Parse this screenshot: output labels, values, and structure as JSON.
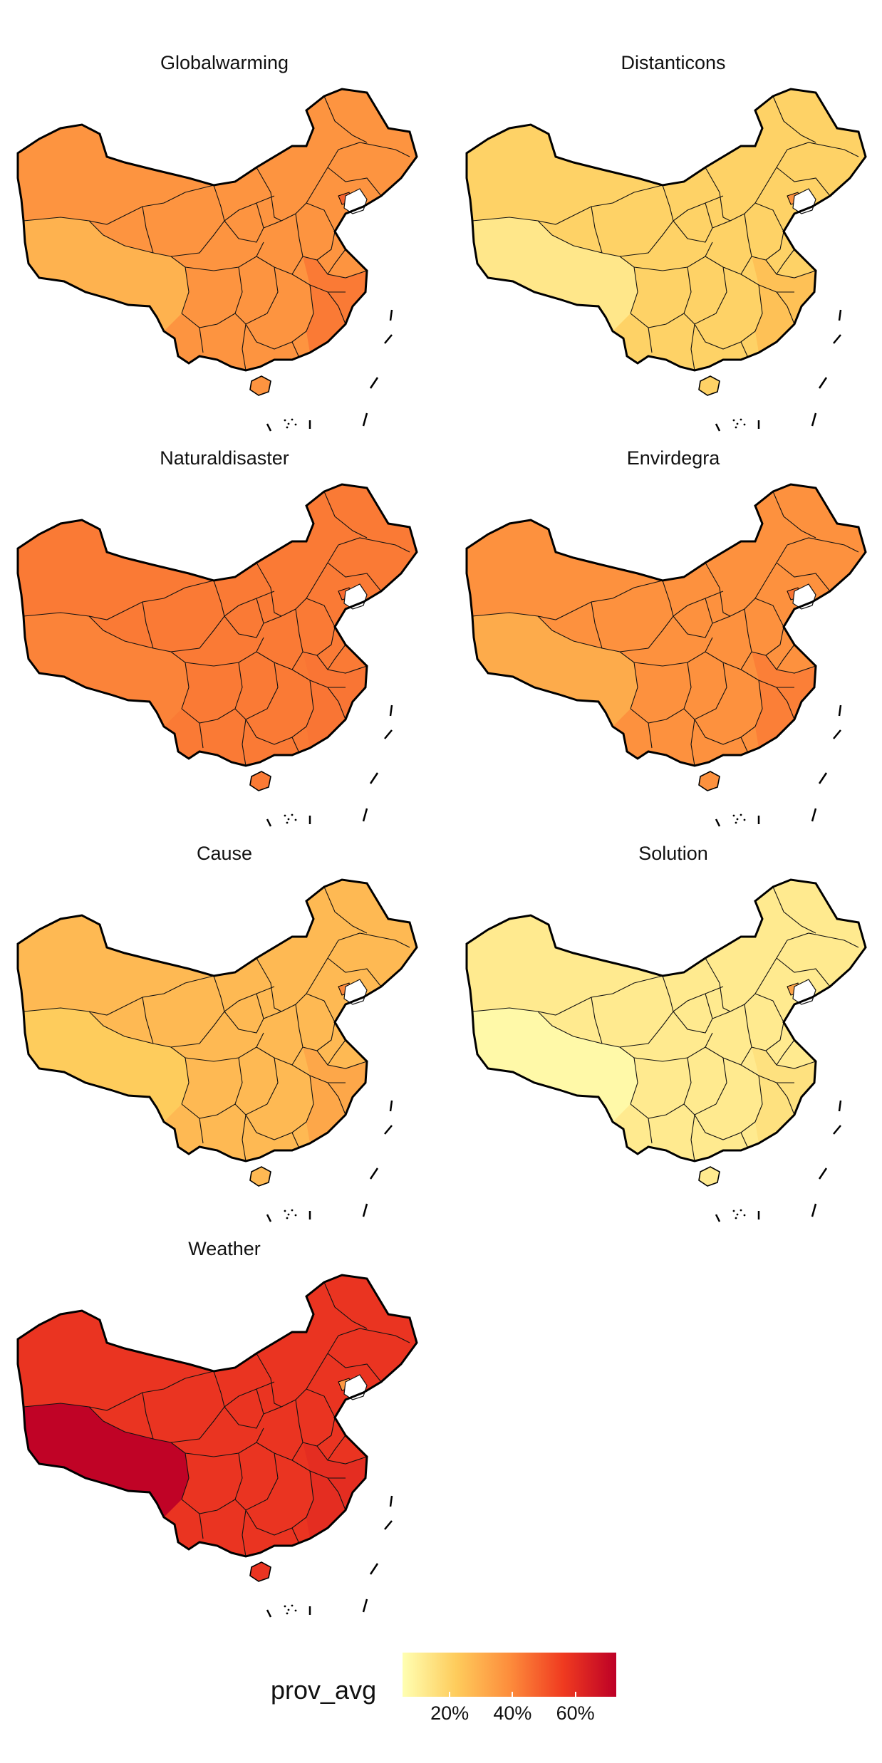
{
  "panels": [
    {
      "title": "Globalwarming",
      "level": 0.37,
      "west": 0.29,
      "hot": 0.48,
      "east": 0.43
    },
    {
      "title": "Distanticons",
      "level": 0.2,
      "west": 0.13,
      "hot": 0.38,
      "east": 0.25
    },
    {
      "title": "Naturaldisaster",
      "level": 0.43,
      "west": 0.41,
      "hot": 0.46,
      "east": 0.44
    },
    {
      "title": "Envirdegra",
      "level": 0.38,
      "west": 0.31,
      "hot": 0.44,
      "east": 0.42
    },
    {
      "title": "Cause",
      "level": 0.27,
      "west": 0.22,
      "hot": 0.4,
      "east": 0.32
    },
    {
      "title": "Solution",
      "level": 0.12,
      "west": 0.07,
      "hot": 0.33,
      "east": 0.15
    },
    {
      "title": "Weather",
      "level": 0.58,
      "west": 0.72,
      "hot": 0.36,
      "east": 0.6
    }
  ],
  "legend": {
    "title": "prov_avg",
    "ticks": [
      {
        "label": "20%",
        "value": 0.2
      },
      {
        "label": "40%",
        "value": 0.4
      },
      {
        "label": "60%",
        "value": 0.6
      }
    ],
    "range": [
      0.05,
      0.73
    ],
    "colors": [
      "#FFFFB2",
      "#FECC5C",
      "#FD8D3C",
      "#F03B20",
      "#BD0026"
    ]
  }
}
